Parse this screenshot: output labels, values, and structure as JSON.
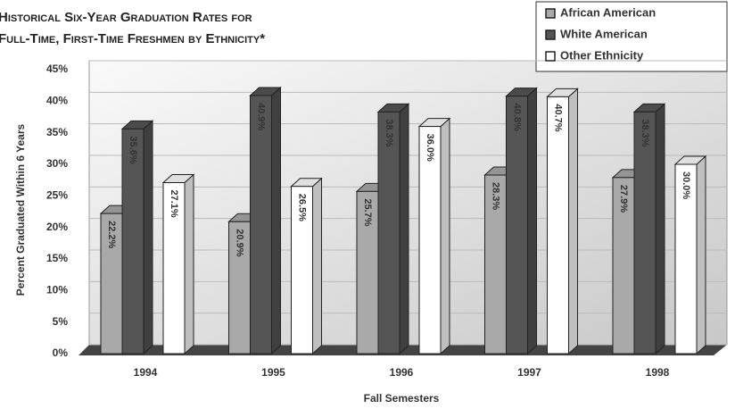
{
  "chart_data": {
    "type": "bar3d",
    "title": [
      "Historical Six-Year Graduation Rates for",
      "Full-Time, First-Time Freshmen by Ethnicity*"
    ],
    "x_label": "Fall Semesters",
    "y_label": "Percent Graduated Within 6 Years",
    "categories": [
      "1994",
      "1995",
      "1996",
      "1997",
      "1998"
    ],
    "series": [
      {
        "name": "African American",
        "color": "#a9a9a9",
        "values": [
          22.2,
          20.9,
          25.7,
          28.3,
          27.9
        ],
        "value_labels": [
          "22.2%",
          "20.9%",
          "25.7%",
          "28.3%",
          "27.9%"
        ]
      },
      {
        "name": "White American",
        "color": "#555555",
        "values": [
          35.6,
          40.9,
          38.3,
          40.8,
          38.3
        ],
        "value_labels": [
          "35.6%",
          "40.9%",
          "38.3%",
          "40.8%",
          "38.3%"
        ]
      },
      {
        "name": "Other Ethnicity",
        "color": "#ffffff",
        "values": [
          27.1,
          26.5,
          36.0,
          40.7,
          30.0
        ],
        "value_labels": [
          "27.1%",
          "26.5%",
          "36.0%",
          "40.7%",
          "30.0%"
        ]
      }
    ],
    "ylim": [
      0,
      45
    ],
    "yticks": [
      {
        "value": 0,
        "label": "0%"
      },
      {
        "value": 5,
        "label": "5%"
      },
      {
        "value": 10,
        "label": "10%"
      },
      {
        "value": 15,
        "label": "15%"
      },
      {
        "value": 20,
        "label": "20%"
      },
      {
        "value": 25,
        "label": "25%"
      },
      {
        "value": 30,
        "label": "30%"
      },
      {
        "value": 35,
        "label": "35%"
      },
      {
        "value": 40,
        "label": "40%"
      },
      {
        "value": 45,
        "label": "45%"
      }
    ],
    "grid": true,
    "legend": "top-right"
  }
}
